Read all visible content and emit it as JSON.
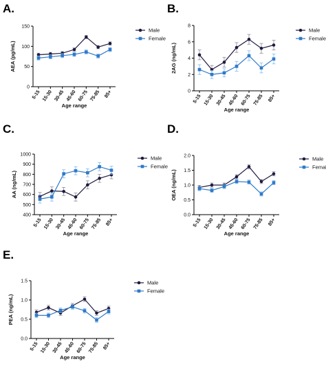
{
  "colors": {
    "male": "#1f1a3d",
    "female": "#2f79c9"
  },
  "chart_data": [
    {
      "panel": "A.",
      "type": "line",
      "categories": [
        "5-15",
        "15-30",
        "30-45",
        "45-60",
        "60-75",
        "75-85",
        "85+"
      ],
      "ylabel": "AEA (pg/mL)",
      "xlabel": "Age range",
      "ylim": [
        0,
        150
      ],
      "yticks": [
        0,
        50,
        100,
        150
      ],
      "series": [
        {
          "name": "Male",
          "values": [
            79,
            81,
            83,
            92,
            123,
            98,
            107
          ],
          "errors": [
            4,
            4,
            4,
            4,
            4,
            4,
            4
          ]
        },
        {
          "name": "Female",
          "values": [
            71,
            74,
            77,
            80,
            86,
            76,
            92
          ],
          "errors": [
            5,
            5,
            5,
            5,
            5,
            5,
            5
          ]
        }
      ]
    },
    {
      "panel": "B.",
      "type": "line",
      "categories": [
        "5-15",
        "15-30",
        "30-45",
        "45-60",
        "60-75",
        "75-85",
        "85+"
      ],
      "ylabel": "2AG (ng/mL)",
      "xlabel": "Age range",
      "ylim": [
        0,
        8
      ],
      "yticks": [
        0,
        2,
        4,
        6,
        8
      ],
      "series": [
        {
          "name": "Male",
          "values": [
            4.4,
            2.6,
            3.5,
            5.3,
            6.3,
            5.2,
            5.6
          ],
          "errors": [
            0.6,
            0.5,
            0.6,
            0.6,
            0.6,
            0.6,
            0.6
          ]
        },
        {
          "name": "Female",
          "values": [
            2.6,
            2.0,
            2.2,
            3.0,
            4.3,
            2.8,
            3.9
          ],
          "errors": [
            0.6,
            0.5,
            0.5,
            0.6,
            0.6,
            0.6,
            0.6
          ]
        }
      ]
    },
    {
      "panel": "C.",
      "type": "line",
      "categories": [
        "5-15",
        "15-30",
        "30-45",
        "45-60",
        "60-75",
        "75-85",
        "85+"
      ],
      "ylabel": "AA (ng/mL)",
      "xlabel": "Age range",
      "ylim": [
        400,
        1000
      ],
      "yticks": [
        400,
        500,
        600,
        700,
        800,
        900,
        1000
      ],
      "series": [
        {
          "name": "Male",
          "values": [
            580,
            635,
            630,
            575,
            695,
            760,
            795
          ],
          "errors": [
            40,
            40,
            40,
            40,
            40,
            40,
            40
          ]
        },
        {
          "name": "Female",
          "values": [
            555,
            575,
            805,
            835,
            815,
            875,
            840
          ],
          "errors": [
            40,
            40,
            40,
            40,
            40,
            40,
            40
          ]
        }
      ]
    },
    {
      "panel": "D.",
      "type": "line",
      "categories": [
        "5-15",
        "15-30",
        "30-45",
        "45-60",
        "60-75",
        "75-85",
        "85+"
      ],
      "ylabel": "OEA (ng/mL)",
      "xlabel": "Age range",
      "ylim": [
        0,
        2.0
      ],
      "yticks": [
        0,
        0.5,
        1.0,
        1.5,
        2.0
      ],
      "series": [
        {
          "name": "Male",
          "values": [
            0.92,
            1.0,
            1.0,
            1.28,
            1.62,
            1.12,
            1.38
          ],
          "errors": [
            0.07,
            0.07,
            0.07,
            0.07,
            0.07,
            0.07,
            0.07
          ]
        },
        {
          "name": "Female",
          "values": [
            0.88,
            0.82,
            0.95,
            1.12,
            1.1,
            0.7,
            1.08
          ],
          "errors": [
            0.07,
            0.07,
            0.07,
            0.07,
            0.07,
            0.07,
            0.07
          ]
        }
      ]
    },
    {
      "panel": "E.",
      "type": "line",
      "categories": [
        "5-15",
        "15-30",
        "30-45",
        "45-60",
        "60-75",
        "75-85",
        "85+"
      ],
      "ylabel": "PEA (ng/mL)",
      "xlabel": "Age range",
      "ylim": [
        0,
        1.5
      ],
      "yticks": [
        0,
        0.5,
        1.0,
        1.5
      ],
      "series": [
        {
          "name": "Male",
          "values": [
            0.68,
            0.8,
            0.66,
            0.85,
            1.02,
            0.66,
            0.78
          ],
          "errors": [
            0.06,
            0.06,
            0.06,
            0.06,
            0.06,
            0.06,
            0.06
          ]
        },
        {
          "name": "Female",
          "values": [
            0.6,
            0.6,
            0.73,
            0.82,
            0.72,
            0.48,
            0.7
          ],
          "errors": [
            0.06,
            0.06,
            0.06,
            0.06,
            0.06,
            0.06,
            0.06
          ]
        }
      ]
    }
  ]
}
